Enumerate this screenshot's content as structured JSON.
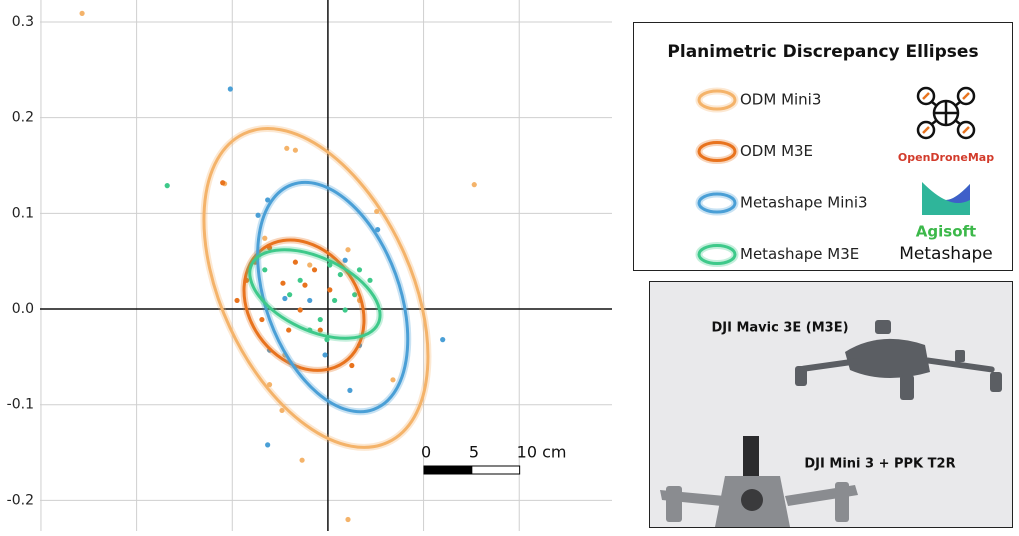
{
  "chart_data": {
    "type": "scatter",
    "xlim": [
      -0.301,
      0.297
    ],
    "ylim": [
      -0.232,
      0.323
    ],
    "xticks": [
      -0.3,
      -0.2,
      -0.1,
      0,
      0.1,
      0.2
    ],
    "yticks": [
      -0.2,
      -0.1,
      {
        "value": 0,
        "label": "0.0"
      },
      0.1,
      0.2,
      0.3
    ],
    "grid": true,
    "legend_title": "Planimetric Discrepancy Ellipses",
    "series": [
      {
        "name": "ODM Mini3",
        "color": "#f4b36a",
        "x": [
          -0.257,
          -0.043,
          -0.034,
          0.153,
          -0.108,
          0.051,
          -0.048,
          -0.027,
          0.021,
          -0.061,
          0.068,
          0.021,
          -0.019,
          0.033,
          -0.045,
          -0.066
        ],
        "values": [
          0.309,
          0.168,
          0.166,
          0.13,
          0.131,
          0.102,
          -0.106,
          -0.158,
          -0.22,
          -0.079,
          -0.074,
          0.062,
          0.046,
          0.009,
          -0.048,
          0.074
        ],
        "ellipse": {
          "cx": -0.0125,
          "cy": 0.022,
          "rx": 0.178,
          "ry": 0.099,
          "angle": -65
        }
      },
      {
        "name": "ODM M3E",
        "color": "#e8731e",
        "x": [
          -0.11,
          -0.095,
          -0.061,
          -0.034,
          -0.047,
          -0.069,
          -0.029,
          -0.014,
          -0.085,
          0.002,
          -0.041,
          -0.076,
          -0.024,
          -0.008,
          0.025
        ],
        "values": [
          0.132,
          0.009,
          0.064,
          0.049,
          0.027,
          -0.011,
          -0.001,
          0.041,
          0.03,
          0.02,
          -0.022,
          0.049,
          0.025,
          -0.022,
          -0.059
        ],
        "ellipse": {
          "cx": -0.025,
          "cy": 0.004,
          "rx": 0.073,
          "ry": 0.057,
          "angle": -55
        }
      },
      {
        "name": "Metashape Mini3",
        "color": "#4a9fd6",
        "x": [
          -0.102,
          -0.063,
          -0.073,
          0.052,
          0.12,
          -0.063,
          0.023,
          -0.061,
          -0.003,
          0.018,
          -0.045,
          0.033,
          -0.019
        ],
        "values": [
          0.23,
          0.114,
          0.098,
          0.083,
          -0.032,
          -0.142,
          -0.085,
          -0.043,
          -0.048,
          0.051,
          0.011,
          -0.038,
          0.009
        ],
        "ellipse": {
          "cx": 0.005,
          "cy": 0.0125,
          "rx": 0.125,
          "ry": 0.07,
          "angle": -70
        }
      },
      {
        "name": "Metashape M3E",
        "color": "#3ec98a",
        "x": [
          -0.168,
          -0.066,
          -0.029,
          0.002,
          0.013,
          0.028,
          -0.008,
          0.007,
          0.018,
          -0.04,
          0.044,
          -0.019,
          0.033,
          -0.001
        ],
        "values": [
          0.129,
          0.041,
          0.03,
          0.046,
          0.036,
          0.015,
          -0.011,
          0.009,
          -0.001,
          0.015,
          0.03,
          -0.022,
          0.041,
          -0.032
        ],
        "ellipse": {
          "cx": -0.0136,
          "cy": 0.0157,
          "rx": 0.073,
          "ry": 0.038,
          "angle": -25
        }
      }
    ]
  },
  "scale_bar": {
    "ticks": [
      0,
      {
        "value": 0.05,
        "label": "5"
      },
      {
        "value": 0.1,
        "label": "10 cm"
      }
    ]
  },
  "logos": {
    "odm": "OpenDroneMap",
    "agisoft": "Agisoft",
    "metashape": "Metashape"
  },
  "photo_labels": [
    "DJI Mavic 3E (M3E)",
    "DJI Mini 3 + PPK T2R"
  ]
}
